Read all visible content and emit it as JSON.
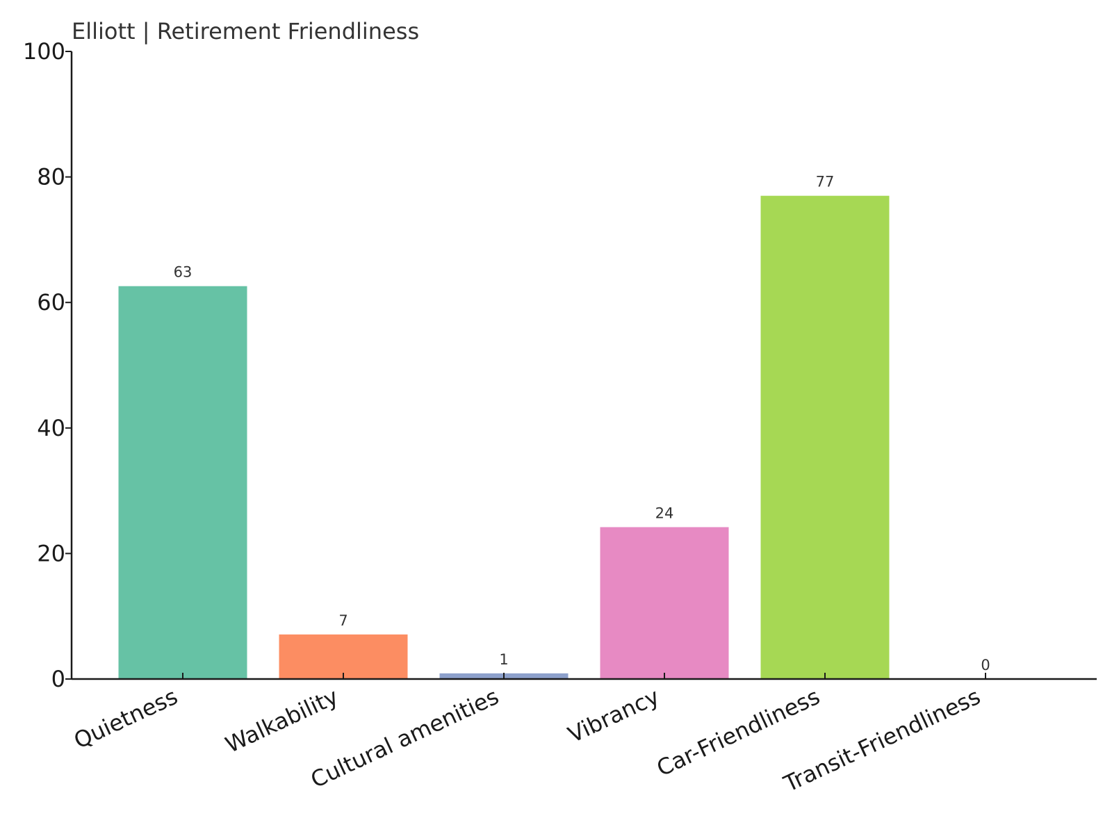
{
  "chart_data": {
    "type": "bar",
    "title": "Elliott | Retirement Friendliness",
    "xlabel": "",
    "ylabel": "",
    "categories": [
      "Quietness",
      "Walkability",
      "Cultural amenities",
      "Vibrancy",
      "Car-Friendliness",
      "Transit-Friendliness"
    ],
    "values": [
      62.6,
      7.1,
      0.9,
      24.2,
      77.0,
      0.0
    ],
    "data_labels": [
      "63",
      "7",
      "1",
      "24",
      "77",
      "0"
    ],
    "colors": [
      "#66c2a5",
      "#fc8d62",
      "#8da0cb",
      "#e78ac3",
      "#a6d854",
      "#ffd92f"
    ],
    "ylim": [
      0,
      100
    ],
    "yticks": [
      0,
      20,
      40,
      60,
      80,
      100
    ],
    "grid": false,
    "legend": "none"
  }
}
